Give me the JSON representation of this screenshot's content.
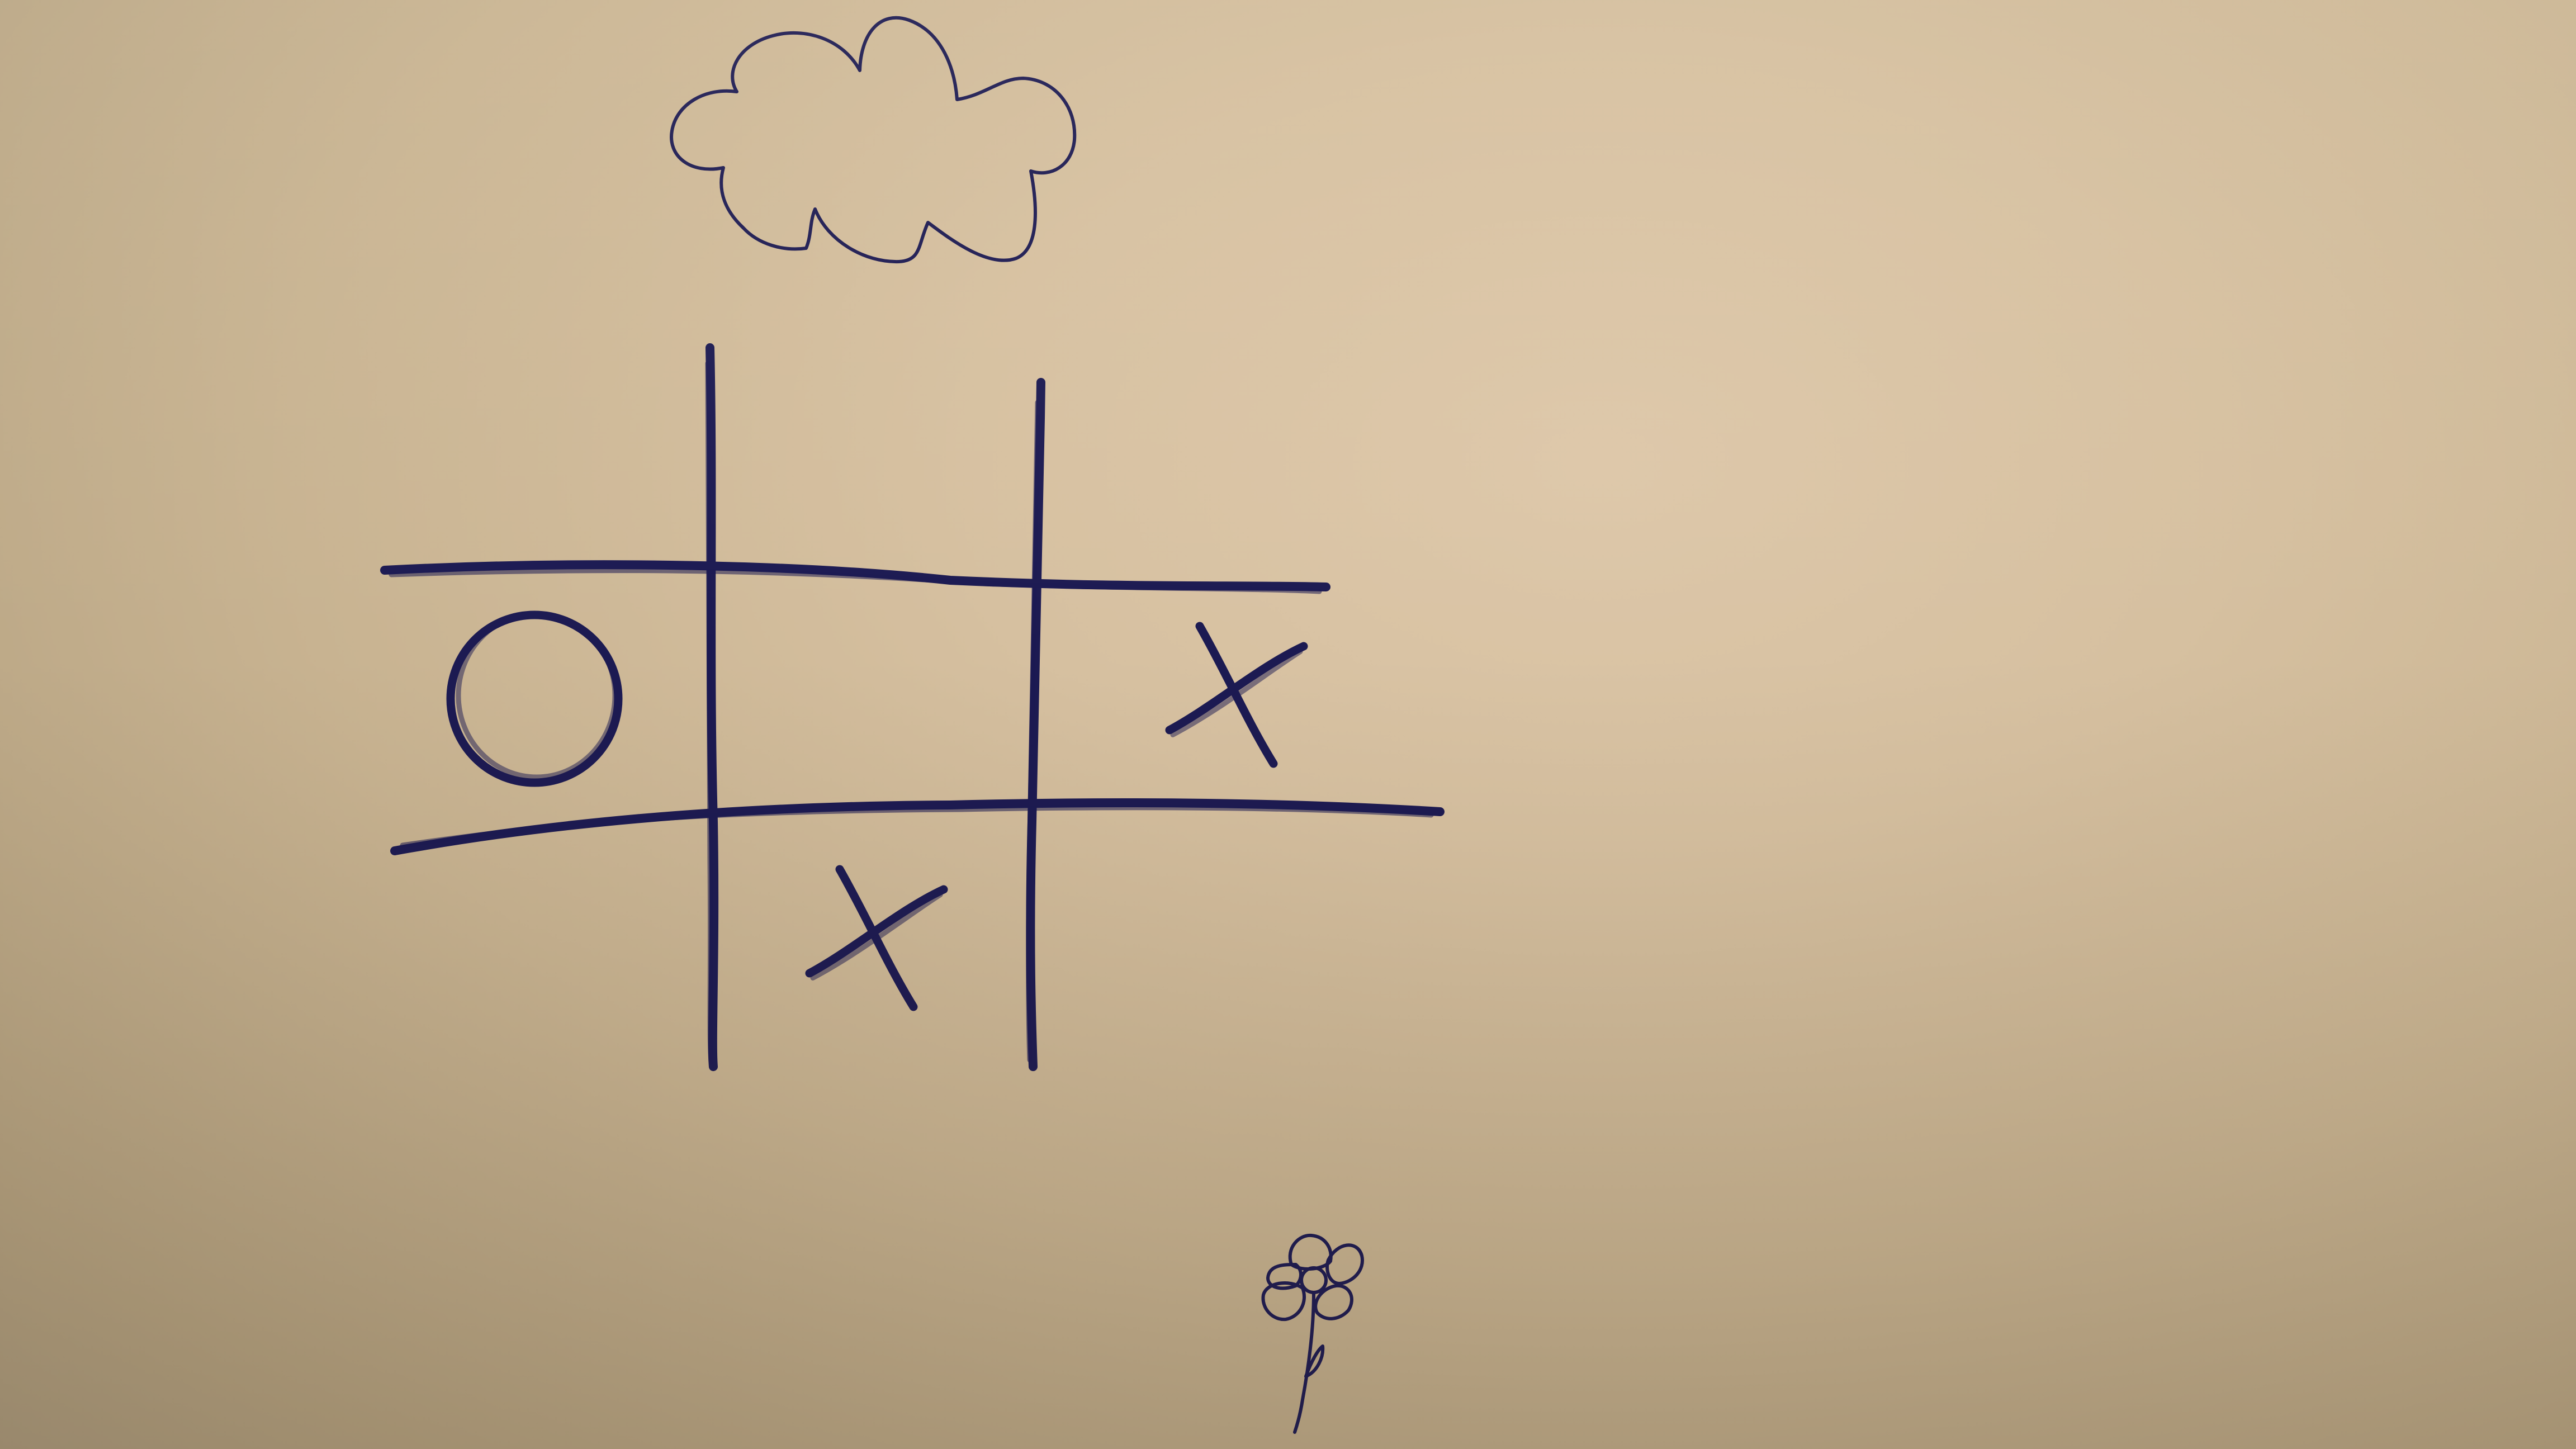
{
  "colors": {
    "ink": "#1c1a52",
    "paper": "#d6c0a0"
  },
  "board": {
    "rows": 3,
    "cols": 3,
    "cells": [
      [
        "",
        "",
        ""
      ],
      [
        "O",
        "",
        "X"
      ],
      [
        "",
        "X",
        ""
      ]
    ]
  },
  "doodles": [
    "cloud",
    "flower"
  ]
}
